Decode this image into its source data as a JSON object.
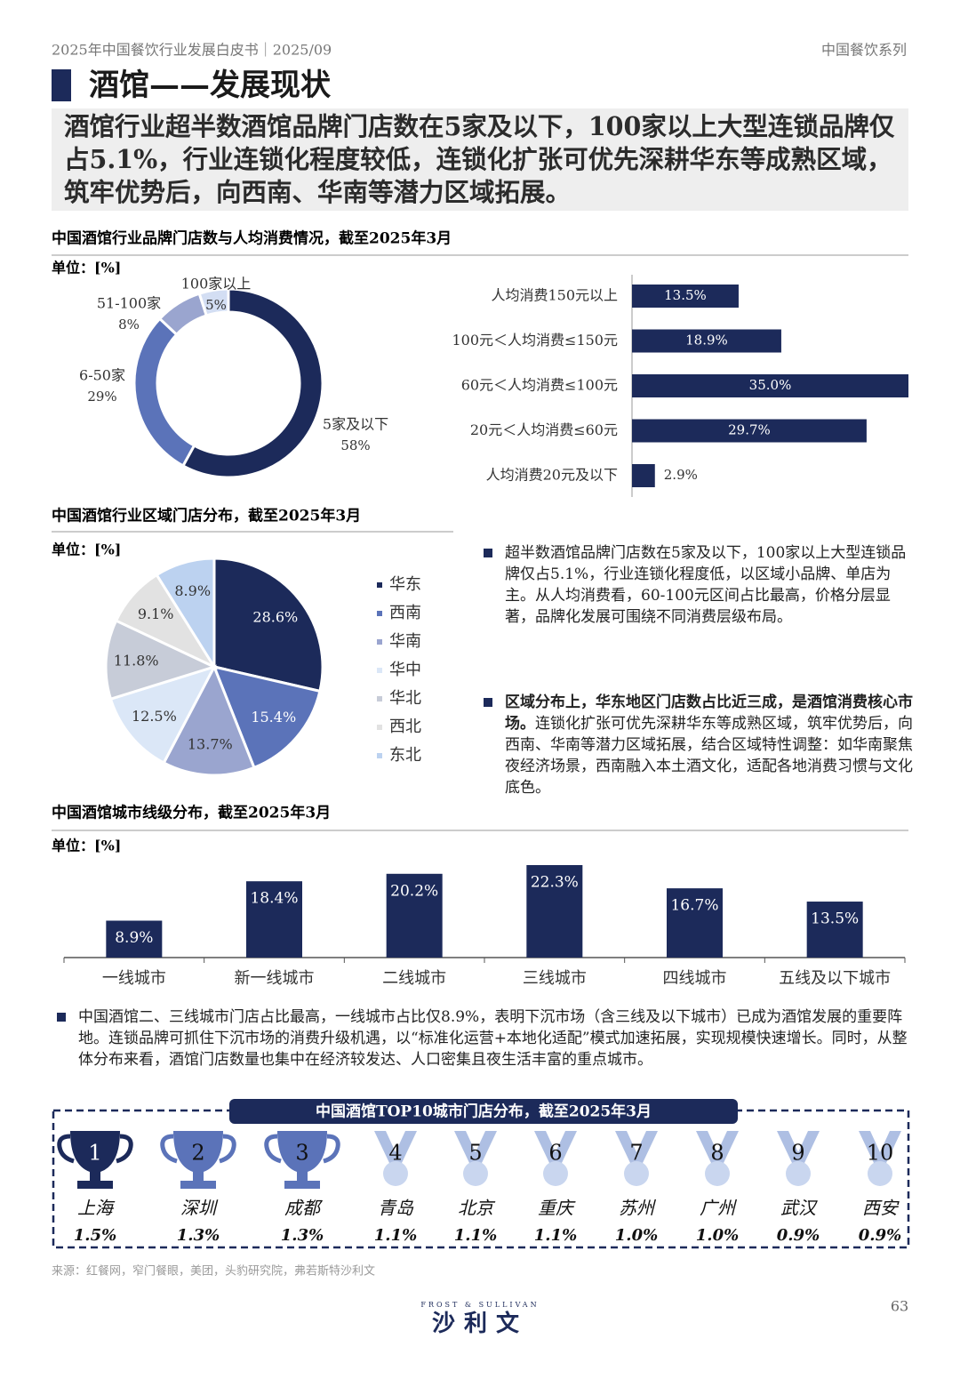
{
  "header": {
    "left": "2025年中国餐饮行业发展白皮书｜2025/09",
    "right": "中国餐饮系列"
  },
  "title": "酒馆——发展现状",
  "summary": "酒馆行业超半数酒馆品牌门店数在5家及以下，100家以上大型连锁品牌仅占5.1%，行业连锁化程度较低，连锁化扩张可优先深耕华东等成熟区域，筑牢优势后，向西南、华南等潜力区域拓展。",
  "chart_data": [
    {
      "type": "donut",
      "title": "中国酒馆行业品牌门店数与人均消费情况，截至2025年3月",
      "unit": "单位：[%]",
      "categories": [
        "5家及以下",
        "6-50家",
        "51-100家",
        "100家以上"
      ],
      "values": [
        58,
        29,
        8,
        5
      ],
      "value_labels": [
        "58%",
        "29%",
        "8%",
        "5%"
      ],
      "colors": [
        "#1c2a5a",
        "#5b73b9",
        "#9aa5cf",
        "#d3def3"
      ]
    },
    {
      "type": "hbar",
      "categories": [
        "人均消费150元以上",
        "100元＜人均消费≤150元",
        "60元＜人均消费≤100元",
        "20元＜人均消费≤60元",
        "人均消费20元及以下"
      ],
      "values": [
        13.5,
        18.9,
        35.0,
        29.7,
        2.9
      ],
      "value_labels": [
        "13.5%",
        "18.9%",
        "35.0%",
        "29.7%",
        "2.9%"
      ],
      "color": "#1c2a5a"
    },
    {
      "type": "pie",
      "title": "中国酒馆行业区域门店分布，截至2025年3月",
      "unit": "单位：[%]",
      "categories": [
        "华东",
        "西南",
        "华南",
        "华中",
        "华北",
        "西北",
        "东北"
      ],
      "values": [
        28.6,
        15.4,
        13.7,
        12.5,
        11.8,
        9.1,
        8.9
      ],
      "value_labels": [
        "28.6%",
        "15.4%",
        "13.7%",
        "12.5%",
        "11.8%",
        "9.1%",
        "8.9%"
      ],
      "colors": [
        "#1c2a5a",
        "#5b73b9",
        "#9aa5cf",
        "#dbe7f7",
        "#c7ccd8",
        "#e2e2e2",
        "#bcd2f0"
      ],
      "legend": "right"
    },
    {
      "type": "bar",
      "title": "中国酒馆城市线级分布，截至2025年3月",
      "unit": "单位：[%]",
      "categories": [
        "一线城市",
        "新一线城市",
        "二线城市",
        "三线城市",
        "四线城市",
        "五线及以下城市"
      ],
      "values": [
        8.9,
        18.4,
        20.2,
        22.3,
        16.7,
        13.5
      ],
      "value_labels": [
        "8.9%",
        "18.4%",
        "20.2%",
        "22.3%",
        "16.7%",
        "13.5%"
      ],
      "color": "#1c2a5a"
    }
  ],
  "bullets": [
    {
      "text": "超半数酒馆品牌门店数在5家及以下，100家以上大型连锁品牌仅占5.1%，行业连锁化程度低，以区域小品牌、单店为主。从人均消费看，60-100元区间占比最高，价格分层显著，品牌化发展可围绕不同消费层级布局。"
    },
    {
      "bold": "区域分布上，华东地区门店数占比近三成，是酒馆消费核心市场。",
      "text": "连锁化扩张可优先深耕华东等成熟区域，筑牢优势后，向西南、华南等潜力区域拓展，结合区域特性调整：如华南聚焦夜经济场景，西南融入本土酒文化，适配各地消费习惯与文化底色。"
    },
    {
      "text": "中国酒馆二、三线城市门店占比最高，一线城市占比仅8.9%，表明下沉市场（含三线及以下城市）已成为酒馆发展的重要阵地。连锁品牌可抓住下沉市场的消费升级机遇，以“标准化运营+本地化适配”模式加速拓展，实现规模快速增长。同时，从整体分布来看，酒馆门店数量也集中在经济较发达、人口密集且夜生活丰富的重点城市。"
    }
  ],
  "top10": {
    "title": "中国酒馆TOP10城市门店分布，截至2025年3月",
    "items": [
      {
        "rank": 1,
        "city": "上海",
        "share": "1.5%"
      },
      {
        "rank": 2,
        "city": "深圳",
        "share": "1.3%"
      },
      {
        "rank": 3,
        "city": "成都",
        "share": "1.3%"
      },
      {
        "rank": 4,
        "city": "青岛",
        "share": "1.1%"
      },
      {
        "rank": 5,
        "city": "北京",
        "share": "1.1%"
      },
      {
        "rank": 6,
        "city": "重庆",
        "share": "1.1%"
      },
      {
        "rank": 7,
        "city": "苏州",
        "share": "1.0%"
      },
      {
        "rank": 8,
        "city": "广州",
        "share": "1.0%"
      },
      {
        "rank": 9,
        "city": "武汉",
        "share": "0.9%"
      },
      {
        "rank": 10,
        "city": "西安",
        "share": "0.9%"
      }
    ]
  },
  "source": "来源：红餐网，窄门餐眼，美团，头豹研究院，弗若斯特沙利文",
  "logo": {
    "en": "FROST & SULLIVAN",
    "cn": "沙利文"
  },
  "page_number": 63
}
